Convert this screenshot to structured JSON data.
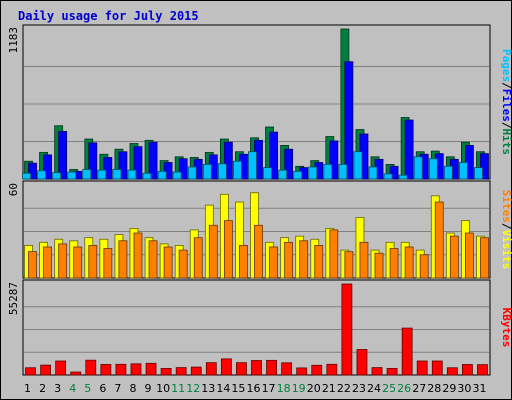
{
  "title": "Daily usage for July 2015",
  "chart_data": {
    "type": "bar",
    "categories": [
      "1",
      "2",
      "3",
      "4",
      "5",
      "6",
      "7",
      "8",
      "9",
      "10",
      "11",
      "12",
      "13",
      "14",
      "15",
      "16",
      "17",
      "18",
      "19",
      "20",
      "21",
      "22",
      "23",
      "24",
      "25",
      "26",
      "27",
      "28",
      "29",
      "30",
      "31"
    ],
    "weekend_days": [
      4,
      5,
      11,
      12,
      18,
      19,
      25,
      26
    ],
    "panels": [
      {
        "name": "top",
        "ymax_label": "1183",
        "ymax": 1183,
        "series": [
          {
            "name": "Hits",
            "color": "#008040",
            "values": [
              140,
              210,
              420,
              75,
              315,
              195,
              235,
              280,
              305,
              145,
              175,
              170,
              210,
              315,
              215,
              325,
              410,
              265,
              100,
              145,
              335,
              1183,
              390,
              175,
              115,
              485,
              215,
              220,
              175,
              290,
              215
            ]
          },
          {
            "name": "Files",
            "color": "#0000ff",
            "values": [
              125,
              190,
              375,
              60,
              285,
              170,
              215,
              255,
              290,
              130,
              160,
              155,
              190,
              290,
              195,
              305,
              370,
              235,
              90,
              130,
              300,
              925,
              355,
              155,
              100,
              465,
              195,
              200,
              155,
              265,
              200
            ]
          },
          {
            "name": "Pages",
            "color": "#00c0ff",
            "values": [
              45,
              65,
              50,
              55,
              75,
              70,
              75,
              70,
              45,
              60,
              55,
              95,
              115,
              120,
              140,
              215,
              90,
              70,
              60,
              95,
              115,
              115,
              215,
              95,
              40,
              30,
              175,
              160,
              100,
              130,
              90
            ]
          }
        ],
        "legend": [
          "Pages",
          "Files",
          "Hits"
        ]
      },
      {
        "name": "middle",
        "ymax_label": "60",
        "ymax": 60,
        "series": [
          {
            "name": "Visits",
            "color": "#ffff00",
            "values": [
              21,
              23,
              25,
              24,
              26,
              25,
              28,
              32,
              26,
              22,
              21,
              31,
              47,
              54,
              49,
              55,
              23,
              26,
              27,
              25,
              32,
              18,
              39,
              18,
              23,
              23,
              18,
              53,
              29,
              37,
              27
            ]
          },
          {
            "name": "Sites",
            "color": "#ff8000",
            "values": [
              17,
              20,
              22,
              20,
              21,
              19,
              24,
              29,
              24,
              20,
              18,
              26,
              34,
              37,
              21,
              34,
              20,
              23,
              24,
              21,
              31,
              17,
              23,
              16,
              19,
              20,
              15,
              49,
              27,
              29,
              26
            ]
          }
        ],
        "legend": [
          "Sites",
          "Visits"
        ]
      },
      {
        "name": "bottom",
        "ymax_label": "55287",
        "ymax": 55287,
        "series": [
          {
            "name": "KBytes",
            "color": "#ff0000",
            "values": [
              4400,
              6000,
              8500,
              1800,
              9000,
              6400,
              6500,
              6800,
              7100,
              4000,
              4500,
              4800,
              7500,
              9800,
              7500,
              8800,
              8900,
              7400,
              4300,
              5900,
              6500,
              55287,
              15500,
              4500,
              4000,
              28500,
              8500,
              8500,
              4400,
              6400,
              6300
            ]
          }
        ],
        "legend": [
          "KBytes"
        ]
      }
    ],
    "legend_separator": "/",
    "day_colors": {
      "weekday": "#000000",
      "weekend": "#008040"
    }
  }
}
